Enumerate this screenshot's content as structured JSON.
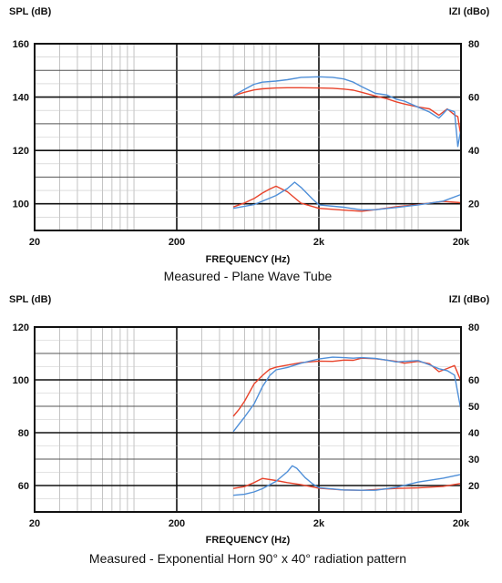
{
  "colors": {
    "series_a": "#e8432b",
    "series_b": "#4f8fd8"
  },
  "chart_data": [
    {
      "type": "line",
      "title": "Measured - Plane Wave Tube",
      "xlabel": "FREQUENCY (Hz)",
      "ylabel": "SPL (dB)",
      "y2label": "IZI (dBo)",
      "xscale": "log",
      "xlim": [
        20,
        20000
      ],
      "ylim": [
        90,
        160
      ],
      "y2lim": [
        10,
        80
      ],
      "grid": true,
      "x_ticks": [
        "20",
        "200",
        "2k",
        "20k"
      ],
      "y_ticks": [
        "160",
        "140",
        "120",
        "100"
      ],
      "y2_ticks": [
        "80",
        "60",
        "40",
        "20"
      ],
      "series": [
        {
          "axis": "left",
          "color": "#e8432b",
          "x": [
            500,
            600,
            700,
            800,
            1000,
            1200,
            1500,
            2000,
            2500,
            3000,
            3500,
            4000,
            5000,
            6000,
            7000,
            8000,
            10000,
            12000,
            14000,
            16000,
            18000,
            19000,
            20000
          ],
          "y": [
            140.5,
            141.8,
            142.7,
            143.1,
            143.4,
            143.5,
            143.5,
            143.4,
            143.3,
            143.0,
            142.6,
            141.8,
            140.4,
            139.4,
            138.2,
            137.4,
            136.3,
            135.6,
            133.2,
            135.6,
            133.3,
            132.7,
            125.0
          ]
        },
        {
          "axis": "left",
          "color": "#4f8fd8",
          "x": [
            500,
            600,
            700,
            800,
            1000,
            1200,
            1500,
            2000,
            2500,
            3000,
            3500,
            4000,
            5000,
            6000,
            7000,
            8000,
            10000,
            12000,
            14000,
            16000,
            18000,
            19000,
            20000
          ],
          "y": [
            140.5,
            142.9,
            144.8,
            145.6,
            146.0,
            146.5,
            147.4,
            147.6,
            147.4,
            146.8,
            145.6,
            143.9,
            141.4,
            140.8,
            139.2,
            138.5,
            136.2,
            134.4,
            132.1,
            135.4,
            134.5,
            121.5,
            128.0
          ]
        },
        {
          "axis": "right",
          "color": "#e8432b",
          "x": [
            500,
            600,
            700,
            800,
            900,
            1000,
            1200,
            1500,
            2000,
            3000,
            4000,
            5000,
            7000,
            10000,
            15000,
            20000
          ],
          "y": [
            18.8,
            20.3,
            22.0,
            24.0,
            25.5,
            26.6,
            24.5,
            20.2,
            18.3,
            17.6,
            17.2,
            17.8,
            18.9,
            19.7,
            20.9,
            20.4
          ]
        },
        {
          "axis": "right",
          "color": "#4f8fd8",
          "x": [
            500,
            700,
            1000,
            1200,
            1350,
            1500,
            1800,
            2000,
            3000,
            4000,
            5000,
            7000,
            10000,
            15000,
            20000
          ],
          "y": [
            18.3,
            19.7,
            23.1,
            25.7,
            28.1,
            26.1,
            21.8,
            19.6,
            18.7,
            17.7,
            17.8,
            18.6,
            19.6,
            21.0,
            23.5
          ]
        }
      ]
    },
    {
      "type": "line",
      "title": "Measured - Exponential Horn 90° x 40° radiation pattern",
      "xlabel": "FREQUENCY (Hz)",
      "ylabel": "SPL (dB)",
      "y2label": "IZI (dBo)",
      "xscale": "log",
      "xlim": [
        20,
        20000
      ],
      "ylim": [
        50,
        120
      ],
      "y2lim": [
        10,
        80
      ],
      "grid": true,
      "x_ticks": [
        "20",
        "200",
        "2k",
        "20k"
      ],
      "y_ticks": [
        "120",
        "100",
        "80",
        "60"
      ],
      "y2_ticks": [
        "80",
        "60",
        "50",
        "40",
        "30",
        "20"
      ],
      "y2_tick_values": [
        80,
        60,
        50,
        40,
        30,
        20
      ],
      "series": [
        {
          "axis": "left",
          "color": "#e8432b",
          "x": [
            500,
            550,
            600,
            700,
            800,
            900,
            1000,
            1200,
            1500,
            2000,
            2500,
            3000,
            3500,
            4000,
            5000,
            6000,
            7000,
            8000,
            10000,
            12000,
            14000,
            16000,
            18000,
            20000
          ],
          "y": [
            86.2,
            88.9,
            91.9,
            98.5,
            101.6,
            104.0,
            104.8,
            105.6,
            106.5,
            107.1,
            107.0,
            107.5,
            107.4,
            108.2,
            108.0,
            107.5,
            107.0,
            106.3,
            107.0,
            106.1,
            103.1,
            104.3,
            105.4,
            99.5
          ]
        },
        {
          "axis": "left",
          "color": "#4f8fd8",
          "x": [
            500,
            550,
            600,
            700,
            800,
            900,
            1000,
            1200,
            1500,
            2000,
            2500,
            3000,
            3500,
            4000,
            5000,
            6000,
            7000,
            8000,
            10000,
            12000,
            14000,
            16000,
            18000,
            19000,
            20000
          ],
          "y": [
            80.4,
            83.3,
            85.9,
            90.9,
            97.3,
            101.6,
            103.8,
            104.7,
            106.3,
            107.9,
            108.6,
            108.4,
            108.2,
            108.4,
            108.1,
            107.5,
            106.8,
            107.0,
            107.3,
            105.7,
            104.2,
            103.5,
            101.8,
            95.0,
            88.6
          ]
        },
        {
          "axis": "right",
          "color": "#e8432b",
          "x": [
            500,
            600,
            700,
            800,
            1000,
            1200,
            1500,
            2000,
            3000,
            4000,
            5000,
            7000,
            10000,
            15000,
            20000
          ],
          "y": [
            18.9,
            19.6,
            21.1,
            22.7,
            21.9,
            21.1,
            20.3,
            19.0,
            18.3,
            18.2,
            18.5,
            18.9,
            19.1,
            19.7,
            20.8
          ]
        },
        {
          "axis": "right",
          "color": "#4f8fd8",
          "x": [
            500,
            600,
            700,
            800,
            1000,
            1200,
            1300,
            1400,
            1600,
            1800,
            2000,
            3000,
            4000,
            5000,
            7000,
            10000,
            15000,
            20000
          ],
          "y": [
            16.3,
            16.7,
            17.6,
            18.8,
            21.6,
            25.2,
            27.5,
            26.5,
            23.0,
            20.7,
            19.2,
            18.3,
            18.2,
            18.2,
            19.3,
            21.3,
            22.8,
            24.2
          ]
        }
      ]
    }
  ]
}
